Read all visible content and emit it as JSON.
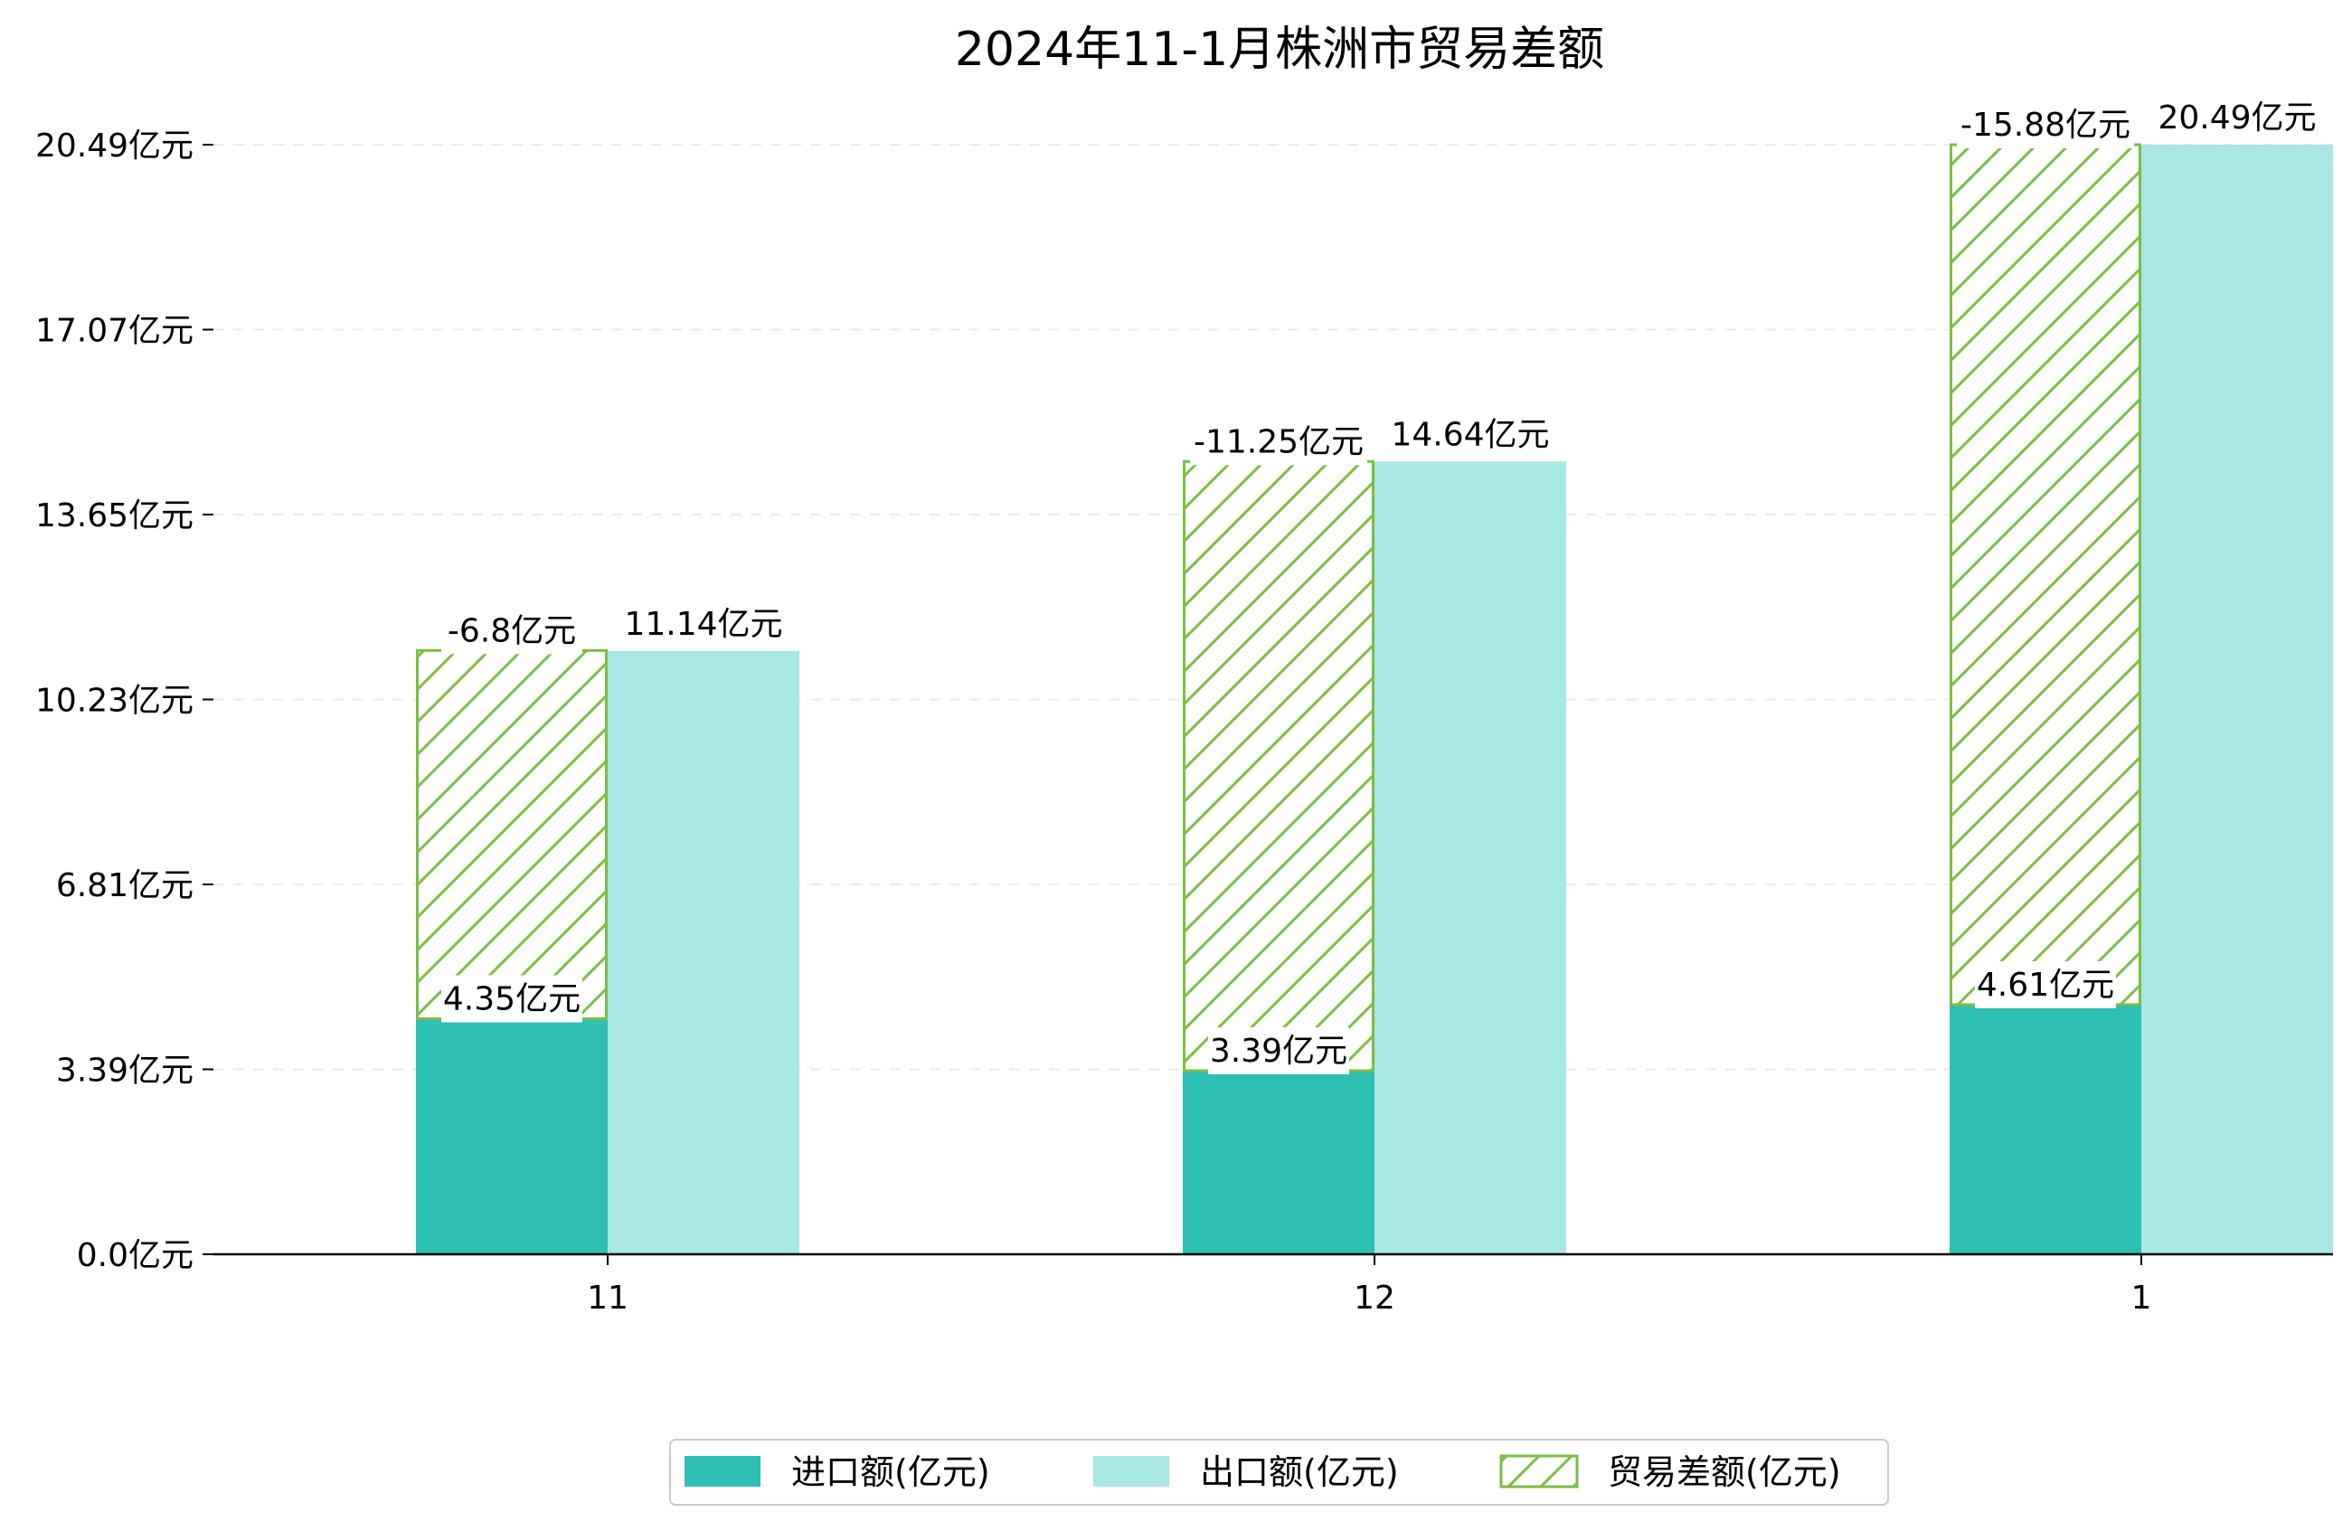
{
  "colors": {
    "import": "#2ec0b4",
    "export": "#a8e7e2",
    "balance": "#7dbd45"
  },
  "chart_data": {
    "type": "bar",
    "title": "2024年11-1月株洲市贸易差额",
    "categories": [
      "11",
      "12",
      "1"
    ],
    "yticks": [
      "0.0亿元",
      "3.39亿元",
      "6.81亿元",
      "10.23亿元",
      "13.65亿元",
      "17.07亿元",
      "20.49亿元"
    ],
    "ylim": [
      0,
      20.49
    ],
    "grid": "horizontal dashed",
    "legend_position": "bottom-center",
    "series": [
      {
        "name": "进口额(亿元)",
        "key": "import",
        "values": [
          4.35,
          3.39,
          4.61
        ],
        "labels": [
          "4.35亿元",
          "3.39亿元",
          "4.61亿元"
        ]
      },
      {
        "name": "出口额(亿元)",
        "key": "export",
        "values": [
          11.14,
          14.64,
          20.49
        ],
        "labels": [
          "11.14亿元",
          "14.64亿元",
          "20.49亿元"
        ]
      },
      {
        "name": "贸易差额(亿元)",
        "key": "balance",
        "values": [
          -6.8,
          -11.25,
          -15.88
        ],
        "labels": [
          "-6.8亿元",
          "-11.25亿元",
          "-15.88亿元"
        ]
      }
    ]
  }
}
